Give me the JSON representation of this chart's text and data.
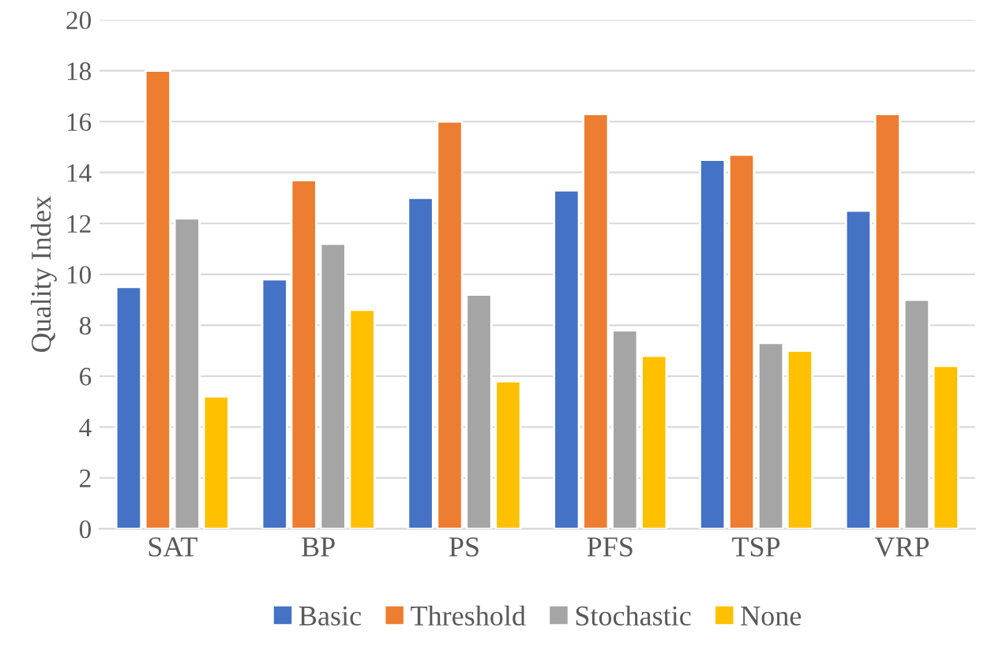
{
  "chart_data": {
    "type": "bar",
    "ylabel": "Quality Index",
    "categories": [
      "SAT",
      "BP",
      "PS",
      "PFS",
      "TSP",
      "VRP"
    ],
    "series": [
      {
        "name": "Basic",
        "color": "#4472c4",
        "values": [
          9.5,
          9.8,
          13.0,
          13.3,
          14.5,
          12.5
        ]
      },
      {
        "name": "Threshold",
        "color": "#ed7d31",
        "values": [
          18.0,
          13.7,
          16.0,
          16.3,
          14.7,
          16.3
        ]
      },
      {
        "name": "Stochastic",
        "color": "#a5a5a5",
        "values": [
          12.2,
          11.2,
          9.2,
          7.8,
          7.3,
          9.0
        ]
      },
      {
        "name": "None",
        "color": "#ffc000",
        "values": [
          5.2,
          8.6,
          5.8,
          6.8,
          7.0,
          6.4
        ]
      }
    ],
    "ylim": [
      0,
      20
    ],
    "yticks": [
      0,
      2,
      4,
      6,
      8,
      10,
      12,
      14,
      16,
      18,
      20
    ],
    "grid": "y",
    "legend": "bottom"
  }
}
